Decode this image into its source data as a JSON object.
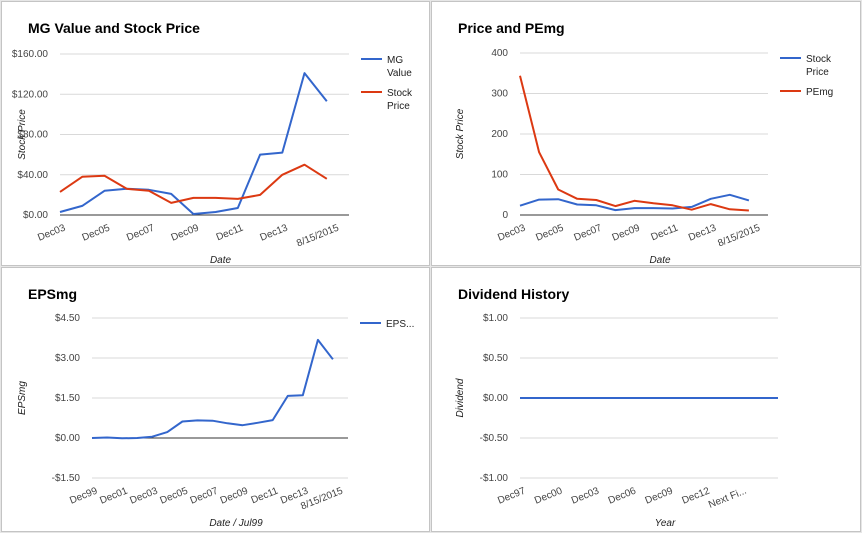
{
  "colors": {
    "blue": "#3366cc",
    "red": "#dc3912"
  },
  "chart_data": [
    {
      "type": "line",
      "title": "MG Value and Stock Price",
      "xlabel": "Date",
      "ylabel": "Stock Price",
      "ylim": [
        0,
        160
      ],
      "yticks": [
        0,
        40,
        80,
        120,
        160
      ],
      "ytick_labels": [
        "$0.00",
        "$40.00",
        "$80.00",
        "$120.00",
        "$160.00"
      ],
      "x_count": 14,
      "xtick_labels": [
        "Dec03",
        "Dec05",
        "Dec07",
        "Dec09",
        "Dec11",
        "Dec13",
        "8/15/2015"
      ],
      "xtick_index": [
        0,
        2,
        4,
        6,
        8,
        10,
        12.3
      ],
      "grid": true,
      "legend_position": "right",
      "series": [
        {
          "name": "MG Value",
          "legend_lines": [
            "MG",
            "Value"
          ],
          "color": "#3366cc",
          "values": [
            3,
            9,
            24,
            26,
            25,
            21,
            1,
            3,
            7,
            60,
            62,
            141,
            113
          ]
        },
        {
          "name": "Stock Price",
          "legend_lines": [
            "Stock",
            "Price"
          ],
          "color": "#dc3912",
          "values": [
            23,
            38,
            39,
            26,
            24,
            12,
            17,
            17,
            16,
            20,
            40,
            50,
            36
          ]
        }
      ]
    },
    {
      "type": "line",
      "title": "Price and PEmg",
      "xlabel": "Date",
      "ylabel": "Stock Price",
      "ylim": [
        0,
        400
      ],
      "yticks": [
        0,
        100,
        200,
        300,
        400
      ],
      "ytick_labels": [
        "0",
        "100",
        "200",
        "300",
        "400"
      ],
      "x_count": 14,
      "xtick_labels": [
        "Dec03",
        "Dec05",
        "Dec07",
        "Dec09",
        "Dec11",
        "Dec13",
        "8/15/2015"
      ],
      "xtick_index": [
        0,
        2,
        4,
        6,
        8,
        10,
        12.3
      ],
      "grid": true,
      "legend_position": "right",
      "series": [
        {
          "name": "Stock Price",
          "legend_lines": [
            "Stock",
            "Price"
          ],
          "color": "#3366cc",
          "values": [
            23,
            38,
            39,
            26,
            24,
            12,
            17,
            17,
            16,
            20,
            40,
            50,
            36
          ]
        },
        {
          "name": "PEmg",
          "legend_lines": [
            "PEmg"
          ],
          "color": "#dc3912",
          "values": [
            344,
            155,
            63,
            40,
            37,
            22,
            35,
            29,
            24,
            13,
            27,
            14,
            11
          ]
        }
      ]
    },
    {
      "type": "line",
      "title": "EPSmg",
      "xlabel": "Date / Jul99",
      "ylabel": "EPSmg",
      "ylim": [
        -1.5,
        4.5
      ],
      "yticks": [
        -1.5,
        0,
        1.5,
        3,
        4.5
      ],
      "ytick_labels": [
        "-$1.50",
        "$0.00",
        "$1.50",
        "$3.00",
        "$4.50"
      ],
      "x_count": 18,
      "xtick_labels": [
        "Dec99",
        "Dec01",
        "Dec03",
        "Dec05",
        "Dec07",
        "Dec09",
        "Dec11",
        "Dec13",
        "8/15/2015"
      ],
      "xtick_index": [
        0,
        2,
        4,
        6,
        8,
        10,
        12,
        14,
        16.3
      ],
      "grid": true,
      "legend_position": "right",
      "series": [
        {
          "name": "EPS...",
          "legend_lines": [
            "EPS..."
          ],
          "color": "#3366cc",
          "values": [
            0.0,
            0.02,
            -0.01,
            0.0,
            0.05,
            0.22,
            0.62,
            0.66,
            0.65,
            0.55,
            0.48,
            0.57,
            0.67,
            1.58,
            1.6,
            3.68,
            2.95
          ]
        }
      ]
    },
    {
      "type": "line",
      "title": "Dividend History",
      "xlabel": "Year",
      "ylabel": "Dividend",
      "ylim": [
        -1,
        1
      ],
      "yticks": [
        -1,
        -0.5,
        0,
        0.5,
        1
      ],
      "ytick_labels": [
        "-$1.00",
        "-$0.50",
        "$0.00",
        "$0.50",
        "$1.00"
      ],
      "x_count": 8,
      "xtick_labels": [
        "Dec97",
        "Dec00",
        "Dec03",
        "Dec06",
        "Dec09",
        "Dec12",
        "Next Fi..."
      ],
      "xtick_index": [
        0,
        1,
        2,
        3,
        4,
        5,
        6
      ],
      "grid": true,
      "legend_position": "none",
      "series": [
        {
          "name": "",
          "legend_lines": [],
          "color": "#3366cc",
          "values": [
            0,
            0,
            0,
            0,
            0,
            0,
            0,
            0
          ]
        }
      ]
    }
  ]
}
